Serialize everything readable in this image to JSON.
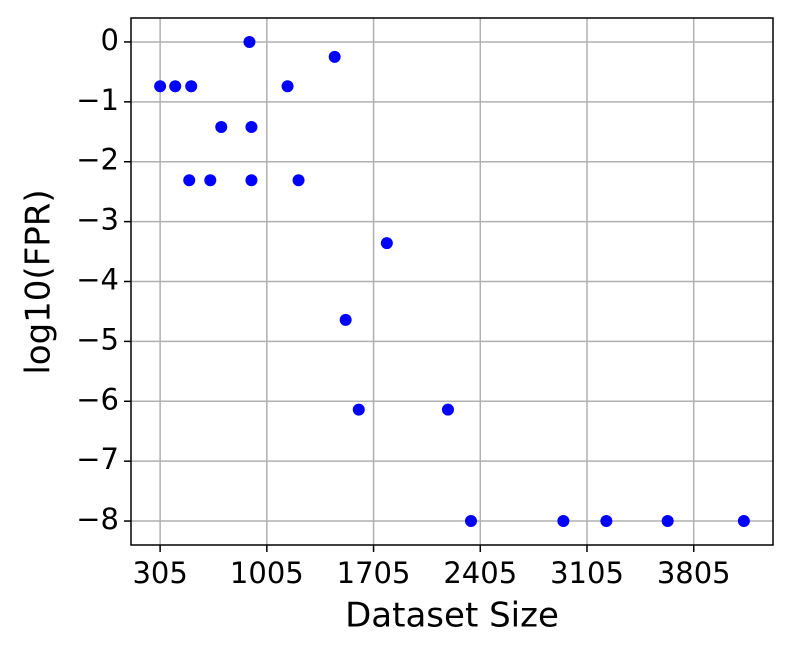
{
  "chart_data": {
    "type": "scatter",
    "x_label": "Dataset Size",
    "y_label": "log10(FPR)",
    "x": [
      305,
      404,
      509,
      496,
      634,
      706,
      891,
      904,
      904,
      1141,
      1213,
      1450,
      1522,
      1608,
      1792,
      2193,
      2344,
      2950,
      3232,
      3634,
      4134
    ],
    "values": [
      -0.74,
      -0.74,
      -0.74,
      -2.31,
      -2.31,
      -1.42,
      0,
      -1.42,
      -2.31,
      -0.74,
      -2.31,
      -0.25,
      -4.64,
      -6.14,
      -3.36,
      -6.14,
      -8,
      -8,
      -8,
      -8,
      -8
    ],
    "color": "#0000ff",
    "xlim": [
      114,
      4325
    ],
    "ylim": [
      -8.4,
      0.4
    ],
    "xticks": [
      305,
      1005,
      1705,
      2405,
      3105,
      3805
    ],
    "yticks": [
      {
        "value": 0,
        "label": "0"
      },
      {
        "value": -1,
        "label": "−1"
      },
      {
        "value": -2,
        "label": "−2"
      },
      {
        "value": -3,
        "label": "−3"
      },
      {
        "value": -4,
        "label": "−4"
      },
      {
        "value": -5,
        "label": "−5"
      },
      {
        "value": -6,
        "label": "−6"
      },
      {
        "value": -7,
        "label": "−7"
      },
      {
        "value": -8,
        "label": "−8"
      }
    ],
    "grid": true
  }
}
